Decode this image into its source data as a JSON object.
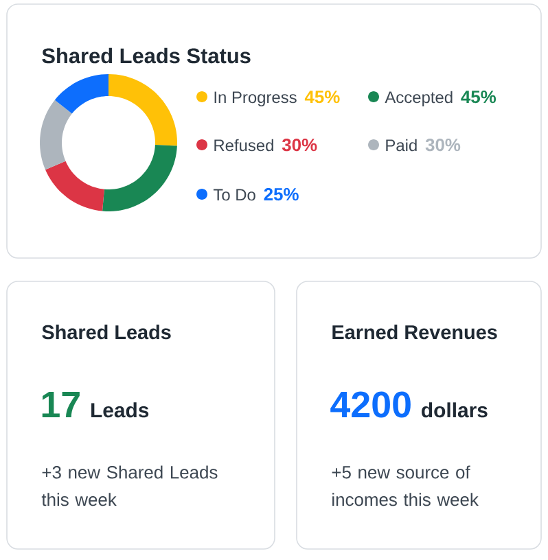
{
  "chart_data": [
    {
      "type": "donut",
      "title": "Shared Leads Status",
      "categories": [
        "In Progress",
        "Accepted",
        "Refused",
        "Paid",
        "To Do"
      ],
      "values": [
        45,
        45,
        30,
        30,
        25
      ],
      "value_labels": [
        "45%",
        "45%",
        "30%",
        "30%",
        "25%"
      ],
      "colors": [
        "#ffc107",
        "#198754",
        "#dc3545",
        "#adb5bd",
        "#0d6efd"
      ],
      "legend": "right"
    },
    {
      "type": "other",
      "title": "Shared Leads",
      "color": "#198754",
      "annotations": [
        "17",
        "Leads",
        "+3 new Shared Leads this week"
      ]
    },
    {
      "type": "other",
      "title": "Earned Revenues",
      "color": "#0d6efd",
      "annotations": [
        "4200",
        "dollars",
        "+5 new source of incomes this week"
      ]
    }
  ]
}
